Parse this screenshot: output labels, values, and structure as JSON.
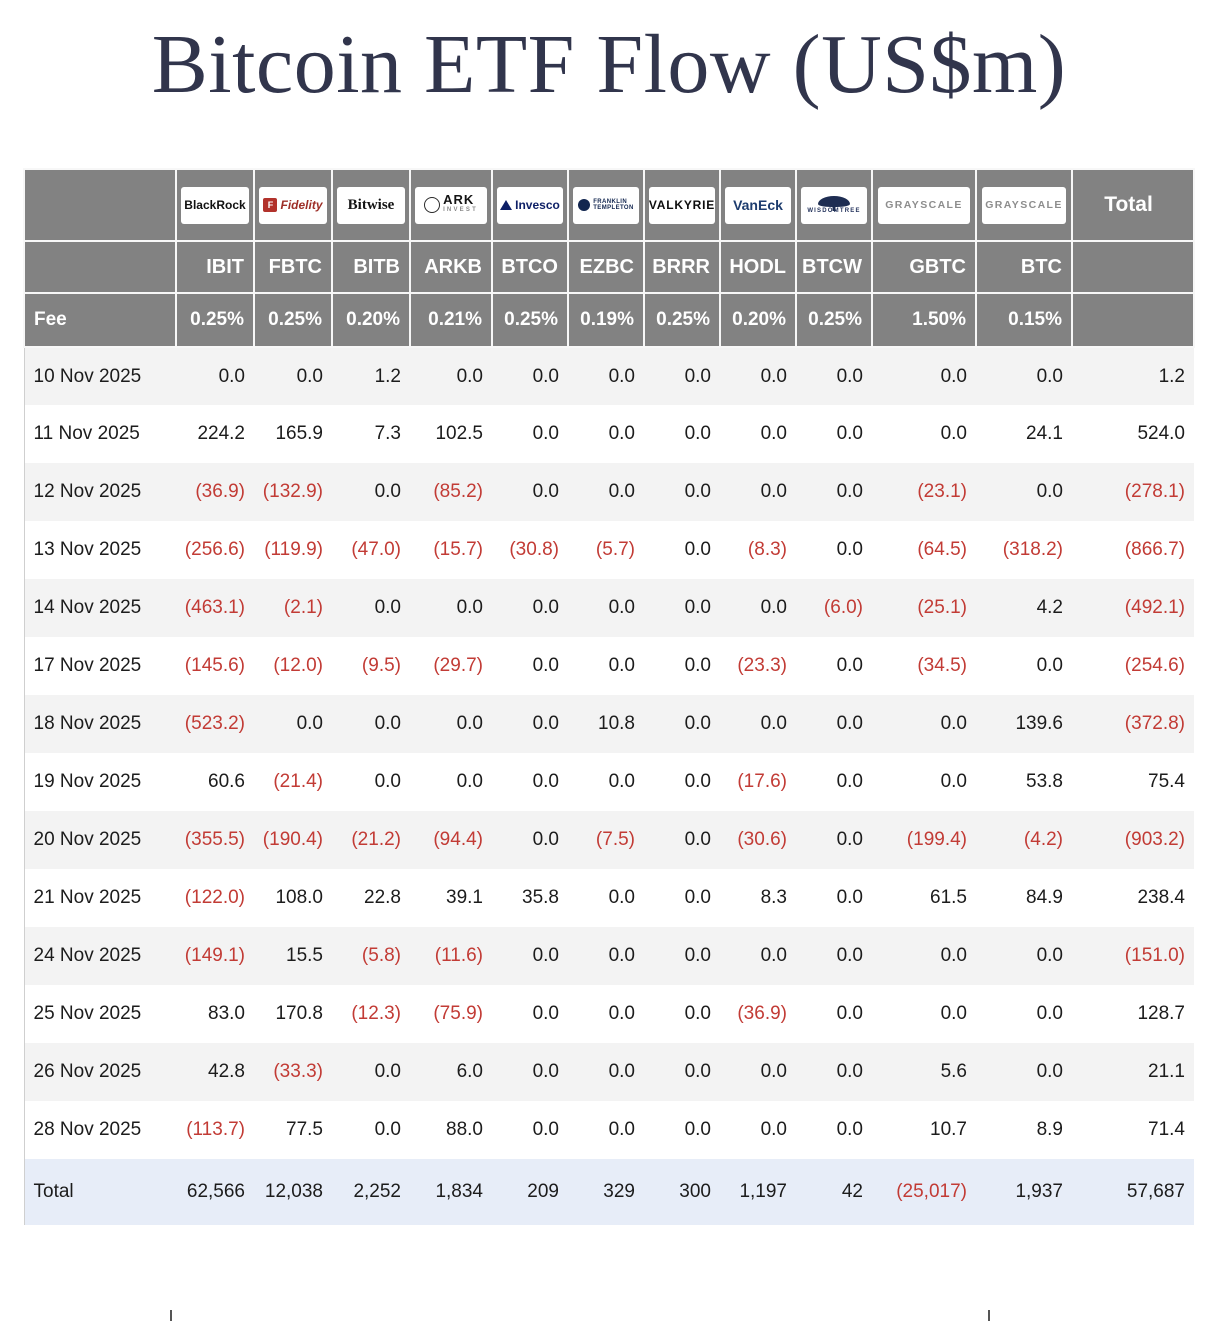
{
  "title": "Bitcoin ETF Flow (US$m)",
  "colors": {
    "header_bg": "#828282",
    "header_text": "#ffffff",
    "negative_text": "#c23b35",
    "stripe_bg": "#f3f3f3",
    "total_row_bg": "#e7edf8",
    "title_text": "#31354c"
  },
  "chart_data": {
    "type": "table",
    "title": "Bitcoin ETF Flow (US$m)",
    "fee_row_label": "Fee",
    "total_column_label": "Total",
    "total_row_label": "Total",
    "providers": [
      {
        "name": "BlackRock",
        "ticker": "IBIT",
        "fee": "0.25%",
        "logo": {
          "type": "blackrock",
          "text": "BlackRock"
        }
      },
      {
        "name": "Fidelity",
        "ticker": "FBTC",
        "fee": "0.25%",
        "logo": {
          "type": "fidelity",
          "icon_text": "F",
          "text": "Fidelity"
        }
      },
      {
        "name": "Bitwise",
        "ticker": "BITB",
        "fee": "0.20%",
        "logo": {
          "type": "bitwise",
          "text": "Bitwise"
        }
      },
      {
        "name": "ARK Invest",
        "ticker": "ARKB",
        "fee": "0.21%",
        "logo": {
          "type": "ark",
          "text": "ARK",
          "subtext": "INVEST"
        }
      },
      {
        "name": "Invesco",
        "ticker": "BTCO",
        "fee": "0.25%",
        "logo": {
          "type": "invesco",
          "text": "Invesco"
        }
      },
      {
        "name": "Franklin Templeton",
        "ticker": "EZBC",
        "fee": "0.19%",
        "logo": {
          "type": "franklin",
          "text": "FRANKLIN",
          "subtext": "TEMPLETON"
        }
      },
      {
        "name": "Valkyrie",
        "ticker": "BRRR",
        "fee": "0.25%",
        "logo": {
          "type": "valkyrie",
          "text": "VALKYRIE"
        }
      },
      {
        "name": "VanEck",
        "ticker": "HODL",
        "fee": "0.20%",
        "logo": {
          "type": "vaneck",
          "text": "VanEck"
        }
      },
      {
        "name": "WisdomTree",
        "ticker": "BTCW",
        "fee": "0.25%",
        "logo": {
          "type": "wisdomtree",
          "text": "WISDOMTREE"
        }
      },
      {
        "name": "Grayscale",
        "ticker": "GBTC",
        "fee": "1.50%",
        "logo": {
          "type": "grayscale",
          "text": "GRAYSCALE"
        }
      },
      {
        "name": "Grayscale",
        "ticker": "BTC",
        "fee": "0.15%",
        "logo": {
          "type": "grayscale",
          "text": "GRAYSCALE"
        }
      }
    ],
    "rows": [
      {
        "date": "10 Nov 2025",
        "values": [
          "0.0",
          "0.0",
          "1.2",
          "0.0",
          "0.0",
          "0.0",
          "0.0",
          "0.0",
          "0.0",
          "0.0",
          "0.0"
        ],
        "total": "1.2"
      },
      {
        "date": "11 Nov 2025",
        "values": [
          "224.2",
          "165.9",
          "7.3",
          "102.5",
          "0.0",
          "0.0",
          "0.0",
          "0.0",
          "0.0",
          "0.0",
          "24.1"
        ],
        "total": "524.0"
      },
      {
        "date": "12 Nov 2025",
        "values": [
          "(36.9)",
          "(132.9)",
          "0.0",
          "(85.2)",
          "0.0",
          "0.0",
          "0.0",
          "0.0",
          "0.0",
          "(23.1)",
          "0.0"
        ],
        "total": "(278.1)"
      },
      {
        "date": "13 Nov 2025",
        "values": [
          "(256.6)",
          "(119.9)",
          "(47.0)",
          "(15.7)",
          "(30.8)",
          "(5.7)",
          "0.0",
          "(8.3)",
          "0.0",
          "(64.5)",
          "(318.2)"
        ],
        "total": "(866.7)"
      },
      {
        "date": "14 Nov 2025",
        "values": [
          "(463.1)",
          "(2.1)",
          "0.0",
          "0.0",
          "0.0",
          "0.0",
          "0.0",
          "0.0",
          "(6.0)",
          "(25.1)",
          "4.2"
        ],
        "total": "(492.1)"
      },
      {
        "date": "17 Nov 2025",
        "values": [
          "(145.6)",
          "(12.0)",
          "(9.5)",
          "(29.7)",
          "0.0",
          "0.0",
          "0.0",
          "(23.3)",
          "0.0",
          "(34.5)",
          "0.0"
        ],
        "total": "(254.6)"
      },
      {
        "date": "18 Nov 2025",
        "values": [
          "(523.2)",
          "0.0",
          "0.0",
          "0.0",
          "0.0",
          "10.8",
          "0.0",
          "0.0",
          "0.0",
          "0.0",
          "139.6"
        ],
        "total": "(372.8)"
      },
      {
        "date": "19 Nov 2025",
        "values": [
          "60.6",
          "(21.4)",
          "0.0",
          "0.0",
          "0.0",
          "0.0",
          "0.0",
          "(17.6)",
          "0.0",
          "0.0",
          "53.8"
        ],
        "total": "75.4"
      },
      {
        "date": "20 Nov 2025",
        "values": [
          "(355.5)",
          "(190.4)",
          "(21.2)",
          "(94.4)",
          "0.0",
          "(7.5)",
          "0.0",
          "(30.6)",
          "0.0",
          "(199.4)",
          "(4.2)"
        ],
        "total": "(903.2)"
      },
      {
        "date": "21 Nov 2025",
        "values": [
          "(122.0)",
          "108.0",
          "22.8",
          "39.1",
          "35.8",
          "0.0",
          "0.0",
          "8.3",
          "0.0",
          "61.5",
          "84.9"
        ],
        "total": "238.4"
      },
      {
        "date": "24 Nov 2025",
        "values": [
          "(149.1)",
          "15.5",
          "(5.8)",
          "(11.6)",
          "0.0",
          "0.0",
          "0.0",
          "0.0",
          "0.0",
          "0.0",
          "0.0"
        ],
        "total": "(151.0)"
      },
      {
        "date": "25 Nov 2025",
        "values": [
          "83.0",
          "170.8",
          "(12.3)",
          "(75.9)",
          "0.0",
          "0.0",
          "0.0",
          "(36.9)",
          "0.0",
          "0.0",
          "0.0"
        ],
        "total": "128.7"
      },
      {
        "date": "26 Nov 2025",
        "values": [
          "42.8",
          "(33.3)",
          "0.0",
          "6.0",
          "0.0",
          "0.0",
          "0.0",
          "0.0",
          "0.0",
          "5.6",
          "0.0"
        ],
        "total": "21.1"
      },
      {
        "date": "28 Nov 2025",
        "values": [
          "(113.7)",
          "77.5",
          "0.0",
          "88.0",
          "0.0",
          "0.0",
          "0.0",
          "0.0",
          "0.0",
          "10.7",
          "8.9"
        ],
        "total": "71.4"
      }
    ],
    "totals": {
      "values": [
        "62,566",
        "12,038",
        "2,252",
        "1,834",
        "209",
        "329",
        "300",
        "1,197",
        "42",
        "(25,017)",
        "1,937"
      ],
      "total": "57,687"
    }
  }
}
